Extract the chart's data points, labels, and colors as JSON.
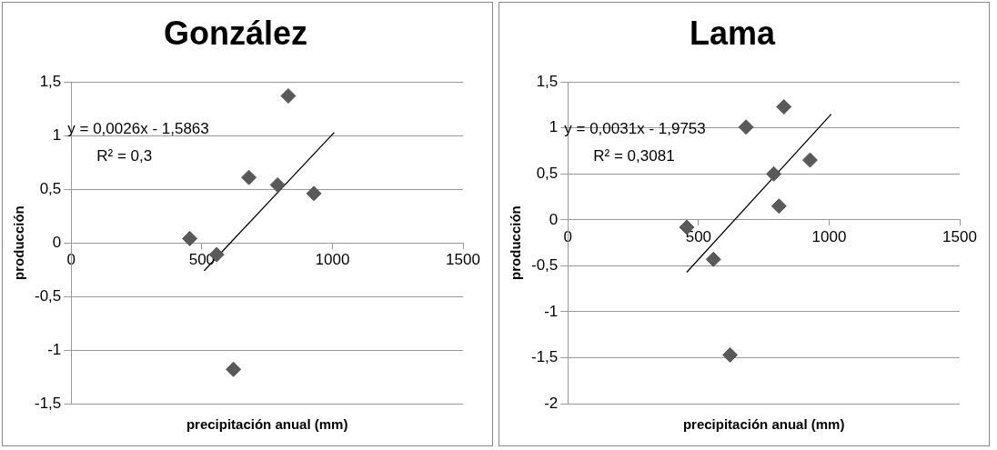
{
  "chart_data": [
    {
      "type": "scatter",
      "title": "González",
      "xlabel": "precipitación anual (mm)",
      "ylabel": "producción",
      "series": [
        {
          "color": "#595959",
          "x": [
            454,
            557,
            680,
            790,
            831,
            929,
            621
          ],
          "values": [
            0.04,
            -0.11,
            0.61,
            0.54,
            1.37,
            0.46,
            -1.18
          ]
        },
        {
          "type": "line",
          "color": "#000000",
          "marker": "none",
          "x": [
            509,
            1007
          ],
          "values": [
            -0.26,
            1.03
          ]
        }
      ],
      "annotations": [
        "y = 0,0026x - 1,5863",
        "R² = 0,3"
      ],
      "xlim": [
        0,
        1500
      ],
      "xticks": [
        0,
        500,
        1000,
        1500
      ],
      "ylim": [
        -1.5,
        1.5
      ],
      "yticks": [
        {
          "value": -1.5,
          "label": "-1,5"
        },
        {
          "value": -1,
          "label": "-1"
        },
        {
          "value": -0.5,
          "label": "-0,5"
        },
        0,
        {
          "value": 0.5,
          "label": "0,5"
        },
        1,
        {
          "value": 1.5,
          "label": "1,5"
        }
      ],
      "grid": "y",
      "marker": "diamond",
      "legend": false
    },
    {
      "type": "scatter",
      "title": "Lama",
      "xlabel": "precipitación anual (mm)",
      "ylabel": "producción",
      "series": [
        {
          "color": "#595959",
          "x": [
            455,
            557,
            682,
            827,
            788,
            808,
            927,
            621
          ],
          "values": [
            -0.08,
            -0.43,
            1.01,
            1.23,
            0.5,
            0.15,
            0.65,
            -1.47
          ]
        },
        {
          "type": "line",
          "color": "#000000",
          "marker": "none",
          "x": [
            455,
            1008
          ],
          "values": [
            -0.57,
            1.15
          ]
        }
      ],
      "annotations": [
        "y = 0,0031x - 1,9753",
        "R² = 0,3081"
      ],
      "xlim": [
        0,
        1500
      ],
      "xticks": [
        0,
        500,
        1000,
        1500
      ],
      "ylim": [
        -2,
        1.5
      ],
      "yticks": [
        -2,
        {
          "value": -1.5,
          "label": "-1,5"
        },
        -1,
        {
          "value": -0.5,
          "label": "-0,5"
        },
        0,
        {
          "value": 0.5,
          "label": "0,5"
        },
        1,
        {
          "value": 1.5,
          "label": "1,5"
        }
      ],
      "grid": "y",
      "marker": "diamond",
      "legend": false
    }
  ]
}
